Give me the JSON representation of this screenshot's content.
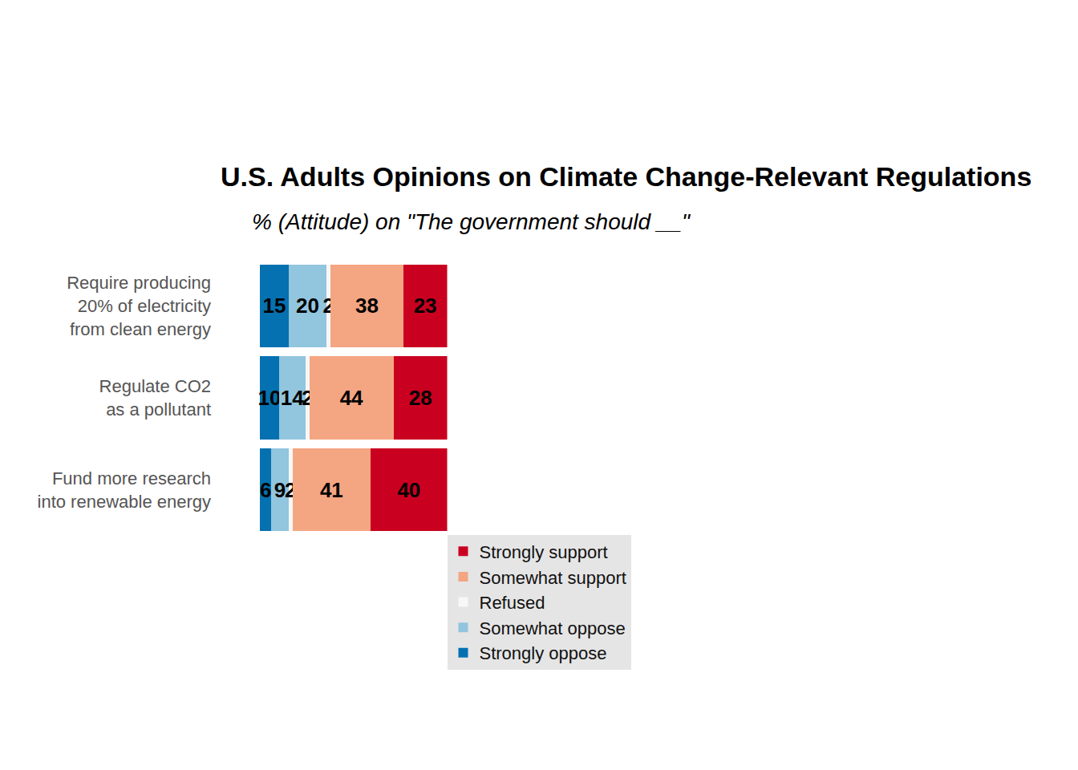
{
  "chart_data": {
    "type": "bar",
    "orientation": "horizontal",
    "stacked": true,
    "data_labels": true,
    "tick_labels": "y",
    "grid": false,
    "legend": "bottom",
    "title": "U.S. Adults Opinions on Climate Change-Relevant Regulations",
    "subtitle": "% (Attitude) on \"The government should __\"",
    "categories": [
      "Require producing\n20% of electricity\nfrom clean energy",
      "Regulate CO2\nas a pollutant",
      "Fund more research\ninto renewable energy"
    ],
    "xlim": [
      0,
      98
    ],
    "series": [
      {
        "name": "Strongly oppose",
        "color": "#0571b0",
        "values": [
          15,
          10,
          6
        ]
      },
      {
        "name": "Somewhat oppose",
        "color": "#92c5de",
        "values": [
          20,
          14,
          9
        ]
      },
      {
        "name": "Refused",
        "color": "#f7f7f7",
        "values": [
          2,
          2,
          2
        ]
      },
      {
        "name": "Somewhat support",
        "color": "#f4a582",
        "values": [
          38,
          44,
          41
        ]
      },
      {
        "name": "Strongly support",
        "color": "#ca0020",
        "values": [
          23,
          28,
          40
        ]
      }
    ]
  }
}
